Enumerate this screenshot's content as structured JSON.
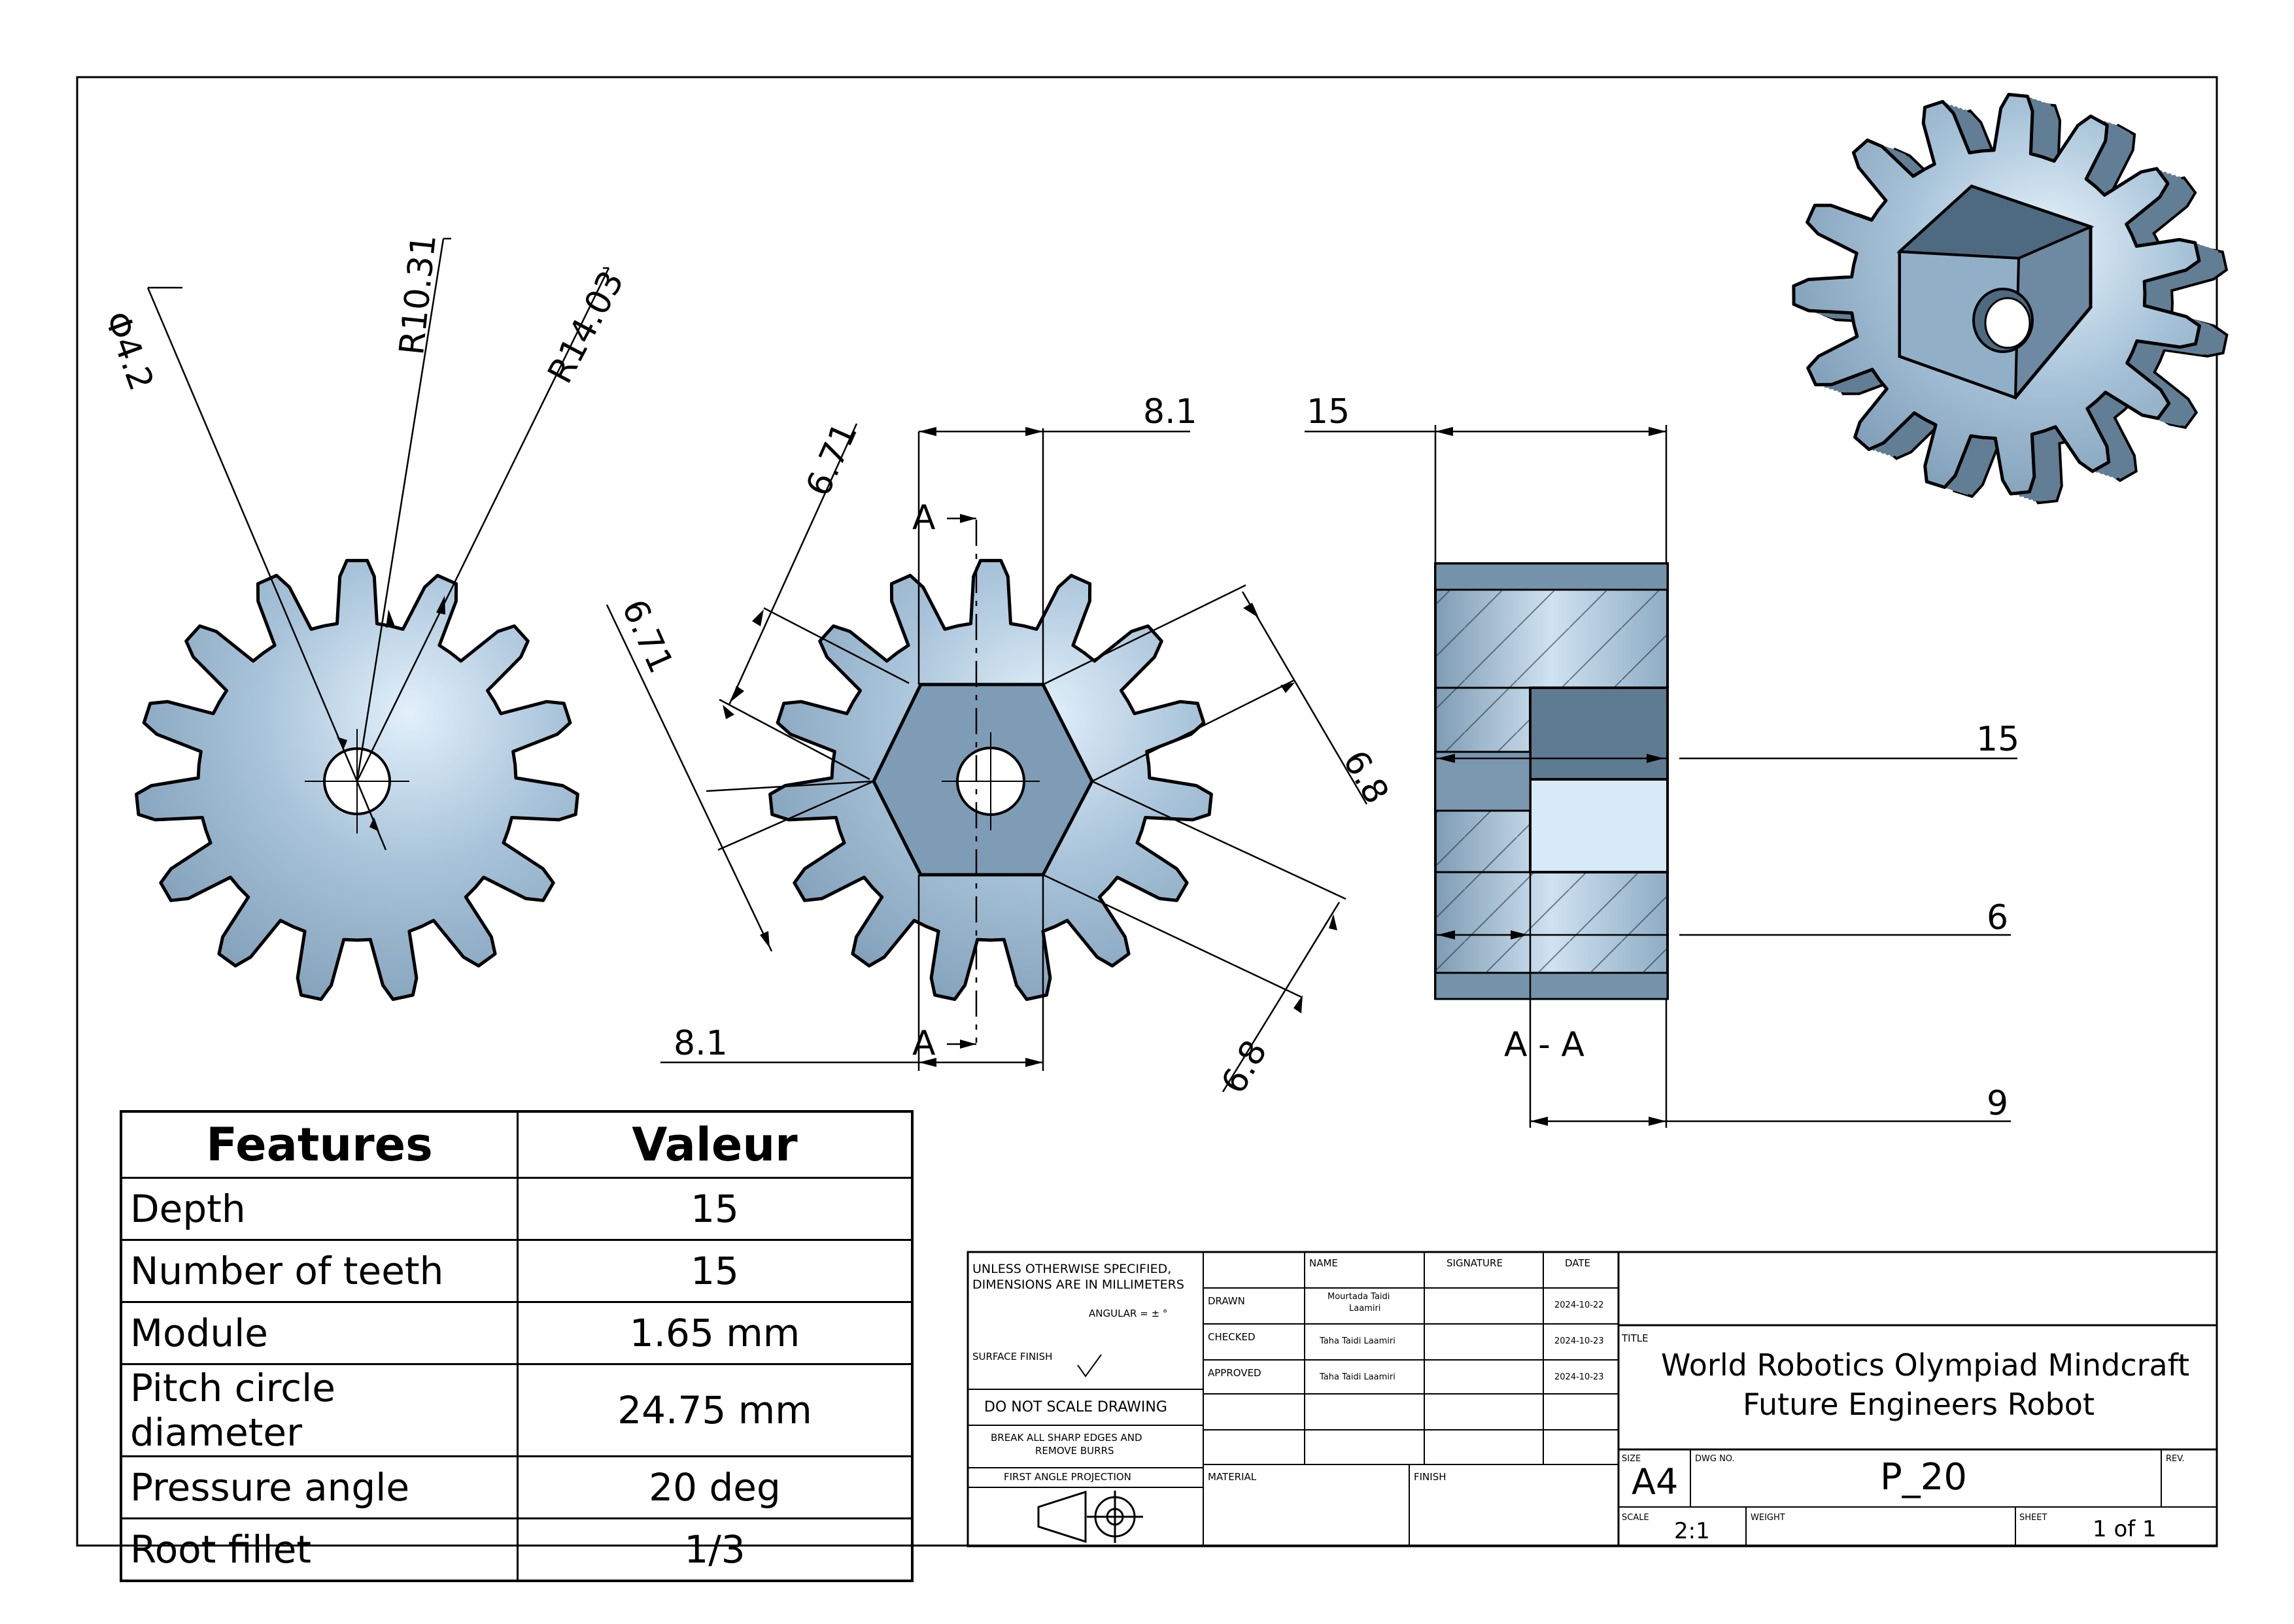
{
  "dimensions": {
    "d_phi": "Φ4.2",
    "d_r1": "R10.31",
    "d_r2": "R14.03",
    "d_671a": "6.71",
    "d_671b": "6.71",
    "d_81a": "8.1",
    "d_81b": "8.1",
    "d_68a": "6.8",
    "d_68b": "6.8",
    "d_15a": "15",
    "d_15b": "15",
    "d_6": "6",
    "d_9": "9",
    "sec_a_top": "A",
    "sec_a_bot": "A",
    "sec_label": "A - A"
  },
  "features_table": {
    "header_feature": "Features",
    "header_value": "Valeur",
    "rows": [
      {
        "feature": "Depth",
        "value": "15"
      },
      {
        "feature": "Number of teeth",
        "value": "15"
      },
      {
        "feature": "Module",
        "value": "1.65 mm"
      },
      {
        "feature": "Pitch circle diameter",
        "value": "24.75 mm"
      },
      {
        "feature": "Pressure angle",
        "value": "20 deg"
      },
      {
        "feature": "Root fillet",
        "value": "1/3"
      }
    ]
  },
  "title_block": {
    "unless1": "UNLESS OTHERWISE SPECIFIED,",
    "unless2": "DIMENSIONS ARE IN MILLIMETERS",
    "angular": "ANGULAR = ± °",
    "surface_finish": "SURFACE FINISH",
    "do_not_scale": "DO NOT SCALE DRAWING",
    "break1": "BREAK ALL SHARP EDGES AND",
    "break2": "REMOVE BURRS",
    "first_angle": "FIRST ANGLE PROJECTION",
    "col_name": "NAME",
    "col_signature": "SIGNATURE",
    "col_date": "DATE",
    "drawn_label": "DRAWN",
    "drawn_name1": "Mourtada Taidi",
    "drawn_name2": "Laamiri",
    "drawn_date": "2024-10-22",
    "checked_label": "CHECKED",
    "checked_name": "Taha Taidi Laamiri",
    "checked_date": "2024-10-23",
    "approved_label": "APPROVED",
    "approved_name": "Taha Taidi Laamiri",
    "approved_date": "2024-10-23",
    "material_label": "MATERIAL",
    "finish_label": "FINISH",
    "title_label": "TITLE",
    "title_line1": "World Robotics Olympiad Mindcraft",
    "title_line2": "Future Engineers Robot",
    "size_label": "SIZE",
    "size_value": "A4",
    "dwg_label": "DWG NO.",
    "dwg_value": "P_20",
    "rev_label": "REV.",
    "scale_label": "SCALE",
    "scale_value": "2:1",
    "weight_label": "WEIGHT",
    "sheet_label": "SHEET",
    "sheet_value": "1 of 1"
  },
  "colors": {
    "body": "#8aa8c2",
    "body_dark": "#627e95",
    "body_light": "#dcecf8",
    "line": "#000000"
  }
}
